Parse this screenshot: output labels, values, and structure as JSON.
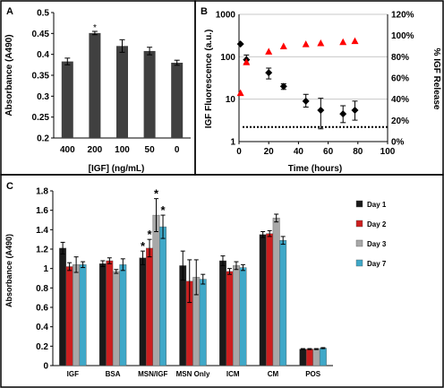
{
  "chart_data": [
    {
      "panel": "A",
      "type": "bar",
      "categories": [
        "400",
        "200",
        "100",
        "50",
        "0"
      ],
      "values": [
        0.383,
        0.451,
        0.42,
        0.408,
        0.38
      ],
      "errors": [
        0.008,
        0.004,
        0.015,
        0.009,
        0.006
      ],
      "annotations": [
        "",
        "*",
        "",
        "",
        ""
      ],
      "xlabel": "[IGF] (ng/mL)",
      "ylabel": "Absorbance (A490)",
      "ylim": [
        0.2,
        0.5
      ],
      "yticks": [
        "0.2",
        "0.25",
        "0.3",
        "0.35",
        "0.4",
        "0.45",
        "0.5"
      ],
      "bar_color": "#404040"
    },
    {
      "panel": "B",
      "type": "scatter",
      "xlabel": "Time (hours)",
      "ylabel": "IGF Fluorescence (a.u.)",
      "y2label": "% IGF Release",
      "xlim": [
        0,
        100
      ],
      "xticks": [
        "0",
        "20",
        "40",
        "60",
        "80",
        "100"
      ],
      "ylim": [
        1,
        1000
      ],
      "yscale": "log",
      "yticks": [
        "1",
        "10",
        "100",
        "1000"
      ],
      "y2lim": [
        0,
        120
      ],
      "y2ticks": [
        "0%",
        "20%",
        "40%",
        "60%",
        "80%",
        "100%",
        "120%"
      ],
      "threshold": 2.2,
      "series": [
        {
          "marker": "diamond",
          "color": "#000000",
          "axis": "left",
          "x": [
            1,
            5,
            20,
            30,
            45,
            55,
            70,
            78
          ],
          "y": [
            200,
            85,
            42,
            20,
            9,
            5.5,
            4.5,
            5.5
          ],
          "err_lo": [
            0,
            15,
            12,
            3,
            2.5,
            3.5,
            1.7,
            2.3
          ],
          "err_hi": [
            0,
            25,
            12,
            3,
            4,
            5,
            2.5,
            3.5
          ]
        },
        {
          "marker": "triangle",
          "color": "#ff0000",
          "axis": "right",
          "x": [
            1,
            5,
            20,
            30,
            45,
            55,
            70,
            78
          ],
          "y": [
            46,
            75,
            85,
            90,
            92,
            93,
            94,
            95
          ]
        }
      ],
      "grid": true
    },
    {
      "panel": "C",
      "type": "bar",
      "categories": [
        "IGF",
        "BSA",
        "MSN/IGF",
        "MSN Only",
        "ICM",
        "CM",
        "POS"
      ],
      "ylabel": "Absorbance (A490)",
      "ylim": [
        0,
        1.8
      ],
      "yticks": [
        "0",
        "0.2",
        "0.4",
        "0.6",
        "0.8",
        "1",
        "1.2",
        "1.4",
        "1.6",
        "1.8"
      ],
      "legend_position": "right",
      "series": [
        {
          "name": "Day 1",
          "color": "#1a1a1a",
          "values": [
            1.21,
            1.05,
            1.11,
            1.03,
            1.08,
            1.35,
            0.17
          ],
          "errors": [
            0.06,
            0.03,
            0.07,
            0.15,
            0.05,
            0.03,
            0.005
          ],
          "stars": [
            false,
            false,
            true,
            false,
            false,
            false,
            false
          ]
        },
        {
          "name": "Day 2",
          "color": "#cc1f1f",
          "values": [
            1.02,
            1.08,
            1.21,
            0.87,
            0.97,
            1.36,
            0.17
          ],
          "errors": [
            0.04,
            0.03,
            0.09,
            0.22,
            0.03,
            0.03,
            0.005
          ],
          "stars": [
            false,
            false,
            true,
            false,
            false,
            false,
            false
          ]
        },
        {
          "name": "Day 3",
          "color": "#a8a8a8",
          "values": [
            1.04,
            0.97,
            1.55,
            0.91,
            1.03,
            1.52,
            0.17
          ],
          "errors": [
            0.08,
            0.02,
            0.17,
            0.18,
            0.04,
            0.04,
            0.005
          ],
          "stars": [
            false,
            false,
            true,
            false,
            false,
            false,
            false
          ]
        },
        {
          "name": "Day 7",
          "color": "#3fa8c8",
          "values": [
            1.04,
            1.04,
            1.43,
            0.89,
            1.01,
            1.29,
            0.18
          ],
          "errors": [
            0.03,
            0.06,
            0.12,
            0.05,
            0.03,
            0.04,
            0.005
          ],
          "stars": [
            false,
            false,
            true,
            false,
            false,
            false,
            false
          ]
        }
      ]
    }
  ],
  "panel_labels": {
    "a": "A",
    "b": "B",
    "c": "C"
  },
  "star_symbol": "*"
}
